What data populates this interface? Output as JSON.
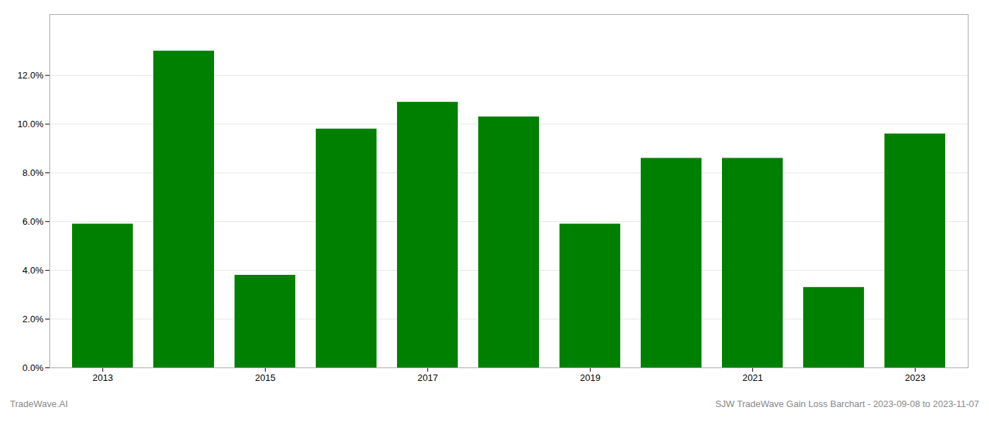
{
  "chart_data": {
    "type": "bar",
    "categories": [
      "2013",
      null,
      "2015",
      null,
      "2017",
      null,
      "2019",
      null,
      "2021",
      null,
      "2023"
    ],
    "values": [
      0.059,
      0.13,
      0.038,
      0.098,
      0.109,
      0.103,
      0.059,
      0.086,
      0.086,
      0.033,
      0.096
    ],
    "color": "#008000",
    "ylim": [
      0,
      0.145
    ],
    "yticks": [
      {
        "value": 0.0,
        "label": "0.0%"
      },
      {
        "value": 0.02,
        "label": "2.0%"
      },
      {
        "value": 0.04,
        "label": "4.0%"
      },
      {
        "value": 0.06,
        "label": "6.0%"
      },
      {
        "value": 0.08,
        "label": "8.0%"
      },
      {
        "value": 0.1,
        "label": "10.0%"
      },
      {
        "value": 0.12,
        "label": "12.0%"
      }
    ],
    "grid": true,
    "annotations": [
      "TradeWave.AI",
      "SJW TradeWave Gain Loss Barchart - 2023-09-08 to 2023-11-07"
    ]
  }
}
